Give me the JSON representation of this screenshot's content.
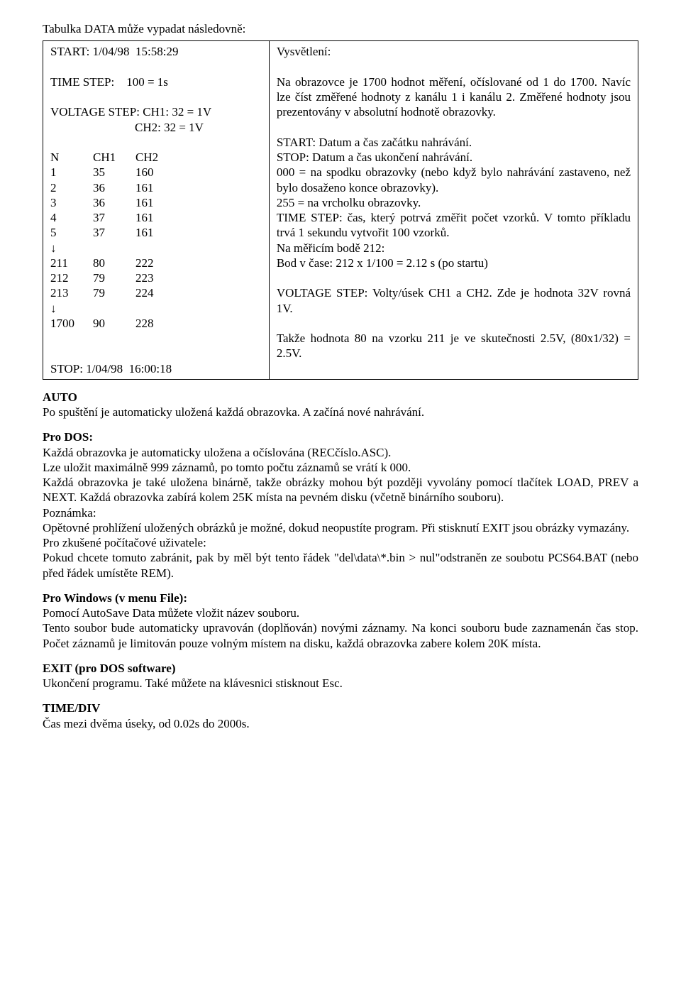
{
  "intro": "Tabulka DATA může vypadat následovně:",
  "left": {
    "start_line": "START: 1/04/98  15:58:29",
    "time_step": "TIME STEP:    100 = 1s",
    "vs1": "VOLTAGE STEP: CH1: 32 = 1V",
    "vs2": "                            CH2: 32 = 1V",
    "headers": [
      "N",
      "CH1",
      "CH2"
    ],
    "rows1": [
      [
        "1",
        "35",
        "160"
      ],
      [
        "2",
        "36",
        "161"
      ],
      [
        "3",
        "36",
        "161"
      ],
      [
        "4",
        "37",
        "161"
      ],
      [
        "5",
        "37",
        "161"
      ]
    ],
    "arrow": "↓",
    "rows2": [
      [
        "211",
        "80",
        "222"
      ],
      [
        "212",
        "79",
        "223"
      ],
      [
        "213",
        "79",
        "224"
      ]
    ],
    "rows3": [
      [
        "1700",
        "90",
        "228"
      ]
    ],
    "stop_line": "STOP: 1/04/98  16:00:18"
  },
  "right": {
    "title": "Vysvětlení:",
    "p1": "Na obrazovce je 1700 hodnot měření, očíslované od 1 do 1700. Navíc lze číst změřené hodnoty z kanálu 1 i kanálu 2. Změřené hodnoty jsou prezentovány v absolutní hodnotě obrazovky.",
    "l1": "START: Datum a čas začátku nahrávání.",
    "l2": "STOP: Datum a čas ukončení nahrávání.",
    "l3": "000 = na spodku obrazovky (nebo když bylo nahrávání zastaveno, než bylo dosaženo konce obrazovky).",
    "l4": "255 = na vrcholku obrazovky.",
    "l5": "TIME STEP: čas, který potrvá změřit počet vzorků. V tomto příkladu trvá 1 sekundu vytvořit 100 vzorků.",
    "l6": "Na měřicím bodě 212:",
    "l7": "Bod v čase: 212 x 1/100 = 2.12 s (po startu)",
    "l8": "VOLTAGE STEP: Volty/úsek CH1 a CH2. Zde je hodnota 32V rovná 1V.",
    "l9": "Takže hodnota 80 na vzorku 211 je ve skutečnosti 2.5V, (80x1/32) = 2.5V."
  },
  "sections": {
    "auto_h": "AUTO",
    "auto_p": "Po spuštění je automaticky uložená každá obrazovka. A začíná nové nahrávání.",
    "dos_h": "Pro DOS:",
    "dos_p1": "Každá obrazovka je automaticky uložena a očíslována (RECčíslo.ASC).",
    "dos_p2": "Lze uložit maximálně 999 záznamů, po tomto počtu záznamů se vrátí k 000.",
    "dos_p3": "Každá obrazovka je také uložena binárně, takže obrázky mohou být později vyvolány pomocí tlačítek LOAD, PREV a NEXT. Každá obrazovka zabírá kolem 25K místa na pevném disku (včetně binárního souboru).",
    "dos_p4h": "Poznámka:",
    "dos_p5": "Opětovné prohlížení uložených obrázků je možné, dokud neopustíte program. Při stisknutí EXIT jsou obrázky vymazány.",
    "dos_p6h": "Pro zkušené počítačové uživatele:",
    "dos_p7": "Pokud chcete tomuto zabránit, pak by měl být tento řádek \"del\\data\\*.bin > nul\"odstraněn ze soubotu PCS64.BAT (nebo před řádek umístěte REM).",
    "win_h": "Pro Windows (v menu File):",
    "win_p1": "Pomocí AutoSave Data můžete vložit název souboru.",
    "win_p2": "Tento soubor bude automaticky upravován (doplňován) novými záznamy. Na konci souboru bude zaznamenán čas stop. Počet záznamů je limitován pouze volným místem na disku, každá obrazovka zabere kolem 20K místa.",
    "exit_h": "EXIT (pro DOS software)",
    "exit_p": "Ukončení programu. Také můžete na klávesnici stisknout Esc.",
    "time_h": "TIME/DIV",
    "time_p": "Čas mezi dvěma úseky, od 0.02s do 2000s."
  }
}
